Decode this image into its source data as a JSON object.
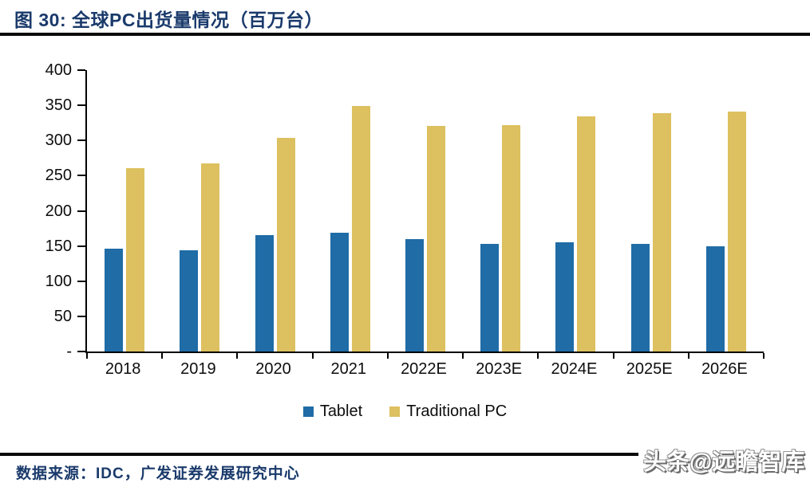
{
  "page": {
    "figure_title": "图  30:  全球PC出货量情况（百万台）",
    "source_text": "数据来源：IDC，广发证券发展研究中心",
    "watermark": "头条@远瞻智库"
  },
  "chart_data": {
    "type": "bar",
    "title": "图 30: 全球PC出货量情况（百万台）",
    "categories": [
      "2018",
      "2019",
      "2020",
      "2021",
      "2022E",
      "2023E",
      "2024E",
      "2025E",
      "2026E"
    ],
    "series": [
      {
        "name": "Tablet",
        "color": "#1F6CA6",
        "values": [
          146,
          144,
          166,
          169,
          160,
          153,
          155,
          153,
          150
        ]
      },
      {
        "name": "Traditional PC",
        "color": "#DDC05F",
        "values": [
          261,
          267,
          304,
          349,
          321,
          322,
          334,
          339,
          341
        ]
      }
    ],
    "xlabel": "",
    "ylabel": "",
    "ylim": [
      0,
      400
    ],
    "ytick_step": 50,
    "ytick_labels": [
      "-",
      "50",
      "100",
      "150",
      "200",
      "250",
      "300",
      "350",
      "400"
    ],
    "grid": false,
    "legend_position": "bottom"
  }
}
